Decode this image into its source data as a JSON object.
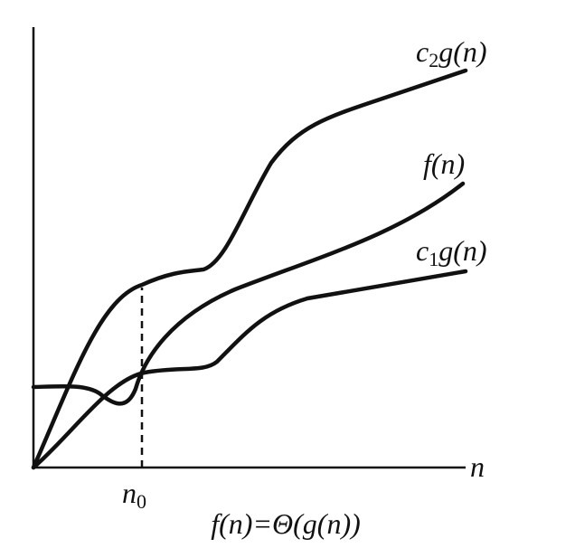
{
  "curves": [
    {
      "name": "c",
      "subscript": "2",
      "rest": "g(n)"
    },
    {
      "name": "f(n)"
    },
    {
      "name": "c",
      "subscript": "1",
      "rest": "g(n)"
    }
  ],
  "axis": {
    "x_label": "n",
    "marker_label": "n",
    "marker_subscript": "0"
  },
  "caption": "f(n)=Θ(g(n))"
}
